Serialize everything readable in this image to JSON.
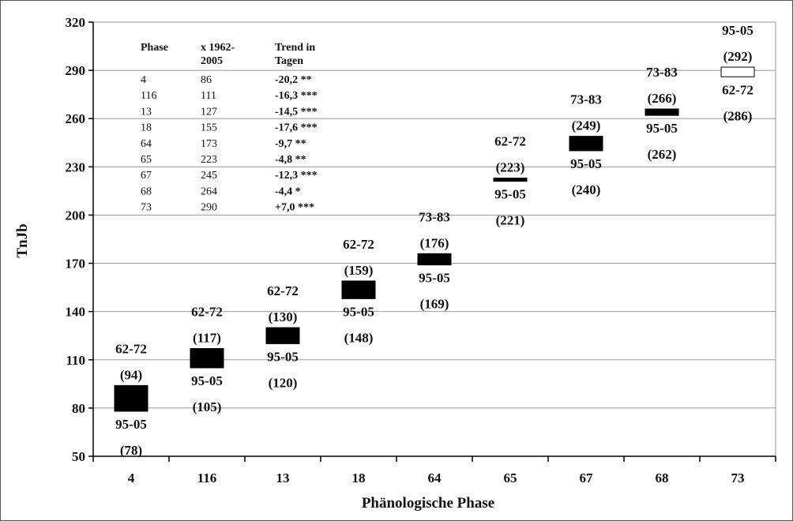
{
  "chart_data": {
    "type": "floating-bar",
    "xlabel": "Phänologische Phase",
    "ylabel": "TnJb",
    "ylim": [
      50,
      320
    ],
    "yticks": [
      "50",
      "80",
      "110",
      "140",
      "170",
      "200",
      "230",
      "260",
      "290",
      "320"
    ],
    "grid": true,
    "categories": [
      "4",
      "116",
      "13",
      "18",
      "64",
      "65",
      "67",
      "68",
      "73"
    ],
    "bars": [
      {
        "phase": "4",
        "low": 78,
        "high": 94,
        "top_period": "62-72",
        "top_value": "(94)",
        "bottom_period": "95-05",
        "bottom_value": "(78)",
        "fill": "#000000"
      },
      {
        "phase": "116",
        "low": 105,
        "high": 117,
        "top_period": "62-72",
        "top_value": "(117)",
        "bottom_period": "95-05",
        "bottom_value": "(105)",
        "fill": "#000000"
      },
      {
        "phase": "13",
        "low": 120,
        "high": 130,
        "top_period": "62-72",
        "top_value": "(130)",
        "bottom_period": "95-05",
        "bottom_value": "(120)",
        "fill": "#000000"
      },
      {
        "phase": "18",
        "low": 148,
        "high": 159,
        "top_period": "62-72",
        "top_value": "(159)",
        "bottom_period": "95-05",
        "bottom_value": "(148)",
        "fill": "#000000"
      },
      {
        "phase": "64",
        "low": 169,
        "high": 176,
        "top_period": "73-83",
        "top_value": "(176)",
        "bottom_period": "95-05",
        "bottom_value": "(169)",
        "fill": "#000000"
      },
      {
        "phase": "65",
        "low": 221,
        "high": 223,
        "top_period": "62-72",
        "top_value": "(223)",
        "bottom_period": "95-05",
        "bottom_value": "(221)",
        "fill": "#000000"
      },
      {
        "phase": "67",
        "low": 240,
        "high": 249,
        "top_period": "73-83",
        "top_value": "(249)",
        "bottom_period": "95-05",
        "bottom_value": "(240)",
        "fill": "#000000"
      },
      {
        "phase": "68",
        "low": 262,
        "high": 266,
        "top_period": "73-83",
        "top_value": "(266)",
        "bottom_period": "95-05",
        "bottom_value": "(262)",
        "fill": "#000000"
      },
      {
        "phase": "73",
        "low": 286,
        "high": 292,
        "top_period": "95-05",
        "top_value": "(292)",
        "bottom_period": "62-72",
        "bottom_value": "(286)",
        "fill": "#ffffff"
      }
    ],
    "table": {
      "headers": [
        "Phase",
        "x 1962-\n2005",
        "Trend in\nTagen"
      ],
      "rows": [
        [
          "4",
          "86",
          "-20,2 **"
        ],
        [
          "116",
          "111",
          "-16,3 ***"
        ],
        [
          "13",
          "127",
          "-14,5 ***"
        ],
        [
          "18",
          "155",
          "-17,6 ***"
        ],
        [
          "64",
          "173",
          "-9,7 **"
        ],
        [
          "65",
          "223",
          "-4,8 **"
        ],
        [
          "67",
          "245",
          "-12,3 ***"
        ],
        [
          "68",
          "264",
          "-4,4 *"
        ],
        [
          "73",
          "290",
          "+7,0 ***"
        ]
      ]
    }
  }
}
